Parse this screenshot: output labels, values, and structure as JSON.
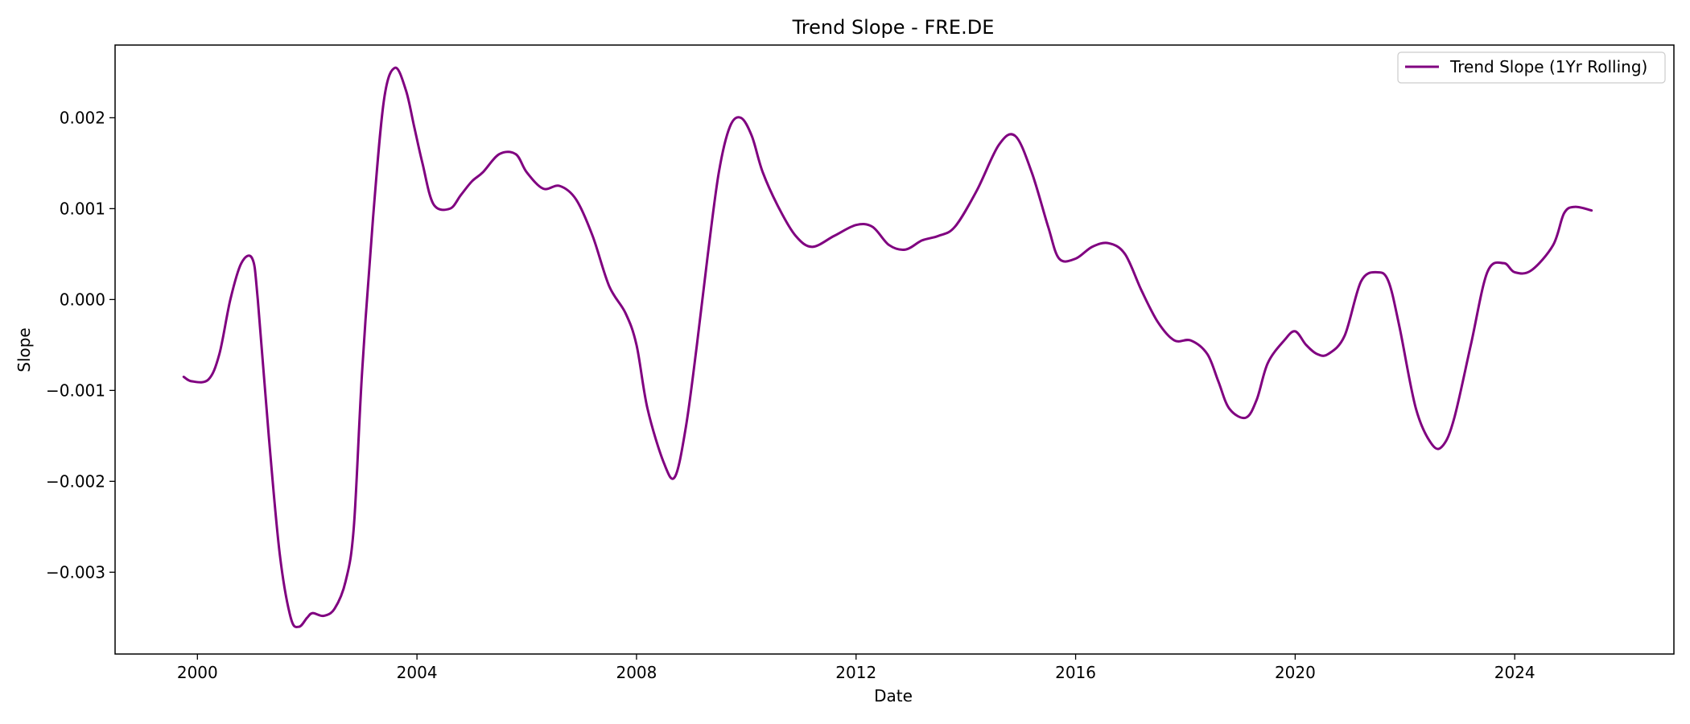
{
  "chart_data": {
    "type": "line",
    "title": "Trend Slope - FRE.DE",
    "xlabel": "Date",
    "ylabel": "Slope",
    "xlim": [
      1998.5,
      2026.9
    ],
    "ylim": [
      -0.0039,
      0.0028
    ],
    "x_ticks": [
      2000,
      2004,
      2008,
      2012,
      2016,
      2020,
      2024
    ],
    "x_tick_labels": [
      "2000",
      "2004",
      "2008",
      "2012",
      "2016",
      "2020",
      "2024"
    ],
    "y_ticks": [
      0.002,
      0.001,
      0.0,
      -0.001,
      -0.002,
      -0.003
    ],
    "y_tick_labels": [
      "0.002",
      "0.001",
      "0.000",
      "−0.001",
      "−0.002",
      "−0.003"
    ],
    "grid": false,
    "legend_position": "top-right",
    "series": [
      {
        "name": "Trend Slope (1Yr Rolling)",
        "color": "#800080",
        "x": [
          1999.75,
          1999.9,
          2000.2,
          2000.4,
          2000.6,
          2000.8,
          2001.0,
          2001.1,
          2001.3,
          2001.5,
          2001.7,
          2001.85,
          2002.0,
          2002.1,
          2002.3,
          2002.5,
          2002.7,
          2002.85,
          2003.0,
          2003.2,
          2003.4,
          2003.6,
          2003.8,
          2003.95,
          2004.1,
          2004.3,
          2004.6,
          2004.8,
          2005.0,
          2005.2,
          2005.5,
          2005.8,
          2006.0,
          2006.3,
          2006.6,
          2006.9,
          2007.2,
          2007.5,
          2007.8,
          2008.0,
          2008.2,
          2008.5,
          2008.7,
          2008.9,
          2009.1,
          2009.3,
          2009.5,
          2009.7,
          2009.9,
          2010.1,
          2010.3,
          2010.6,
          2010.9,
          2011.2,
          2011.6,
          2012.0,
          2012.3,
          2012.6,
          2012.9,
          2013.2,
          2013.5,
          2013.8,
          2014.2,
          2014.6,
          2014.9,
          2015.2,
          2015.5,
          2015.7,
          2016.0,
          2016.3,
          2016.6,
          2016.9,
          2017.2,
          2017.5,
          2017.8,
          2018.1,
          2018.4,
          2018.6,
          2018.8,
          2019.1,
          2019.3,
          2019.5,
          2019.8,
          2020.0,
          2020.2,
          2020.4,
          2020.6,
          2020.9,
          2021.2,
          2021.5,
          2021.7,
          2021.9,
          2022.2,
          2022.5,
          2022.7,
          2022.9,
          2023.2,
          2023.5,
          2023.8,
          2024.0,
          2024.3,
          2024.7,
          2024.9,
          2025.1,
          2025.4
        ],
        "y": [
          -0.00085,
          -0.0009,
          -0.00088,
          -0.0006,
          0.0,
          0.0004,
          0.00045,
          0.0,
          -0.0015,
          -0.0028,
          -0.0035,
          -0.0036,
          -0.0035,
          -0.00345,
          -0.00348,
          -0.0034,
          -0.0031,
          -0.0025,
          -0.0008,
          0.0009,
          0.0022,
          0.00255,
          0.0023,
          0.0019,
          0.0015,
          0.00105,
          0.001,
          0.00115,
          0.0013,
          0.0014,
          0.0016,
          0.0016,
          0.0014,
          0.00122,
          0.00125,
          0.0011,
          0.0007,
          0.00015,
          -0.00015,
          -0.0005,
          -0.0012,
          -0.0018,
          -0.00195,
          -0.0014,
          -0.0005,
          0.0005,
          0.0014,
          0.0019,
          0.002,
          0.0018,
          0.0014,
          0.001,
          0.0007,
          0.00058,
          0.0007,
          0.00082,
          0.0008,
          0.0006,
          0.00055,
          0.00065,
          0.0007,
          0.0008,
          0.0012,
          0.0017,
          0.0018,
          0.0014,
          0.0008,
          0.00045,
          0.00045,
          0.00058,
          0.00062,
          0.0005,
          0.0001,
          -0.00025,
          -0.00045,
          -0.00045,
          -0.0006,
          -0.0009,
          -0.0012,
          -0.0013,
          -0.0011,
          -0.0007,
          -0.00045,
          -0.00035,
          -0.0005,
          -0.0006,
          -0.0006,
          -0.0004,
          0.0002,
          0.0003,
          0.0002,
          -0.0003,
          -0.0012,
          -0.0016,
          -0.0016,
          -0.0013,
          -0.0005,
          0.0003,
          0.0004,
          0.0003,
          0.00032,
          0.0006,
          0.00095,
          0.00102,
          0.00098
        ]
      }
    ]
  }
}
